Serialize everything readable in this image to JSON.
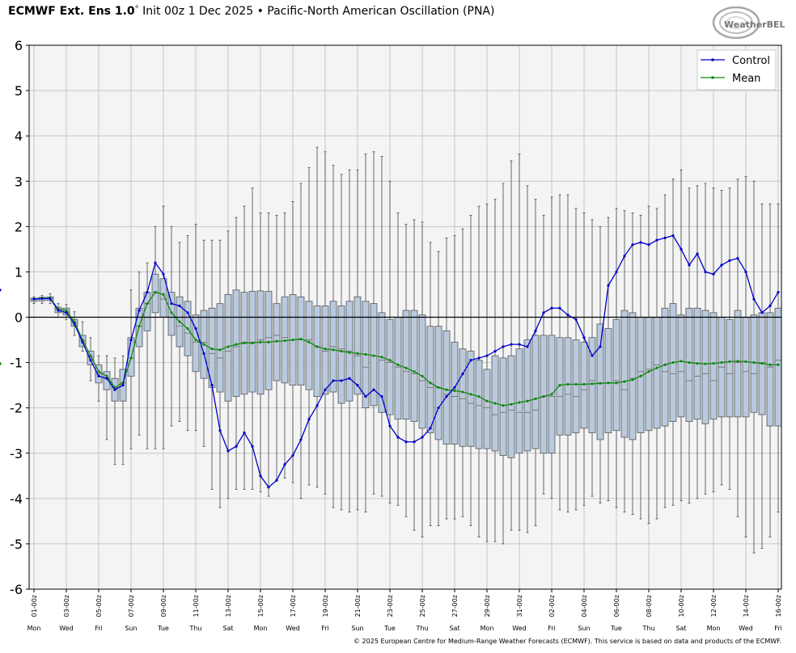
{
  "header": {
    "model": "ECMWF Ext. Ens 1.0",
    "degree": "°",
    "init": "Init 00z 1 Dec 2025",
    "bullet": "•",
    "index": "Pacific-North American Oscillation (PNA)"
  },
  "logo": {
    "text": "WeatherBELL",
    "icon": "weatherbell-logo"
  },
  "footer": {
    "text": "© 2025 European Centre for Medium-Range Weather Forecasts (ECMWF). This service is based on data and products of the ECMWF."
  },
  "colors": {
    "plot_bg": "#f4f4f4",
    "grid": "#c6c6c6",
    "box_fill": "#b9cadf",
    "box_edge": "#555555",
    "control": "#0000cc",
    "mean": "#118811"
  },
  "chart_data": {
    "type": "boxplot",
    "title": "ECMWF Ext. Ens 1.0° Init 00z 1 Dec 2025 • Pacific-North American Oscillation (PNA)",
    "ylim": [
      -6,
      6
    ],
    "yticks": [
      6,
      5,
      4,
      3,
      2,
      1,
      0,
      -1,
      -2,
      -3,
      -4,
      -5,
      -6
    ],
    "grid": true,
    "legend_position": "top-right",
    "x_tick_labels": [
      "01-00z",
      "03-00z",
      "05-00z",
      "07-00z",
      "09-00z",
      "11-00z",
      "13-00z",
      "15-00z",
      "17-00z",
      "19-00z",
      "21-00z",
      "23-00z",
      "25-00z",
      "27-00z",
      "29-00z",
      "31-00z",
      "02-00z",
      "04-00z",
      "06-00z",
      "08-00z",
      "10-00z",
      "12-00z",
      "14-00z",
      "16-00z"
    ],
    "x_day_labels": [
      "Mon",
      "Wed",
      "Fri",
      "Sun",
      "Tue",
      "Thu",
      "Sat",
      "Mon",
      "Wed",
      "Fri",
      "Sun",
      "Tue",
      "Thu",
      "Sat",
      "Mon",
      "Wed",
      "Fri",
      "Sun",
      "Tue",
      "Thu",
      "Sat",
      "Mon",
      "Wed",
      "Fri"
    ],
    "x_units": "days since 01-00z, 12-hour steps",
    "box_x": [
      0,
      0.5,
      1,
      1.5,
      2,
      2.5,
      3,
      3.5,
      4,
      4.5,
      5,
      5.5,
      6,
      6.5,
      7,
      7.5,
      8,
      8.5,
      9,
      9.5,
      10,
      10.5,
      11,
      11.5,
      12,
      12.5,
      13,
      13.5,
      14,
      14.5,
      15,
      15.5,
      16,
      16.5,
      17,
      17.5,
      18,
      18.5,
      19,
      19.5,
      20,
      20.5,
      21,
      21.5,
      22,
      22.5,
      23,
      23.5,
      24,
      24.5,
      25,
      25.5,
      26,
      26.5,
      27,
      27.5,
      28,
      28.5,
      29,
      29.5,
      30,
      30.5,
      31,
      31.5,
      32,
      32.5,
      33,
      33.5,
      34,
      34.5,
      35,
      35.5,
      36,
      36.5,
      37,
      37.5,
      38,
      38.5,
      39,
      39.5,
      40,
      40.5,
      41,
      41.5,
      42,
      42.5,
      43,
      43.5,
      44,
      44.5,
      45,
      45.5,
      46
    ],
    "series": [
      {
        "name": "Control",
        "color": "#0000cc",
        "values": [
          0.4,
          0.41,
          0.41,
          0.15,
          0.1,
          -0.15,
          -0.55,
          -0.95,
          -1.3,
          -1.35,
          -1.6,
          -1.5,
          -0.5,
          0.15,
          0.55,
          1.2,
          0.95,
          0.3,
          0.25,
          0.1,
          -0.25,
          -0.8,
          -1.5,
          -2.5,
          -2.95,
          -2.85,
          -2.55,
          -2.85,
          -3.5,
          -3.75,
          -3.6,
          -3.25,
          -3.05,
          -2.7,
          -2.25,
          -1.95,
          -1.6,
          -1.4,
          -1.4,
          -1.35,
          -1.5,
          -1.75,
          -1.6,
          -1.75,
          -2.4,
          -2.65,
          -2.75,
          -2.75,
          -2.65,
          -2.45,
          -2.0,
          -1.75,
          -1.55,
          -1.25,
          -0.95,
          -0.9,
          -0.85,
          -0.75,
          -0.65,
          -0.6,
          -0.6,
          -0.65,
          -0.3,
          0.1,
          0.2,
          0.2,
          0.05,
          -0.05,
          -0.45,
          -0.85,
          -0.65,
          0.7,
          1.0,
          1.35,
          1.6,
          1.65,
          1.6,
          1.7,
          1.75,
          1.8,
          1.5,
          1.15,
          1.4,
          1.0,
          0.95,
          1.15,
          1.25,
          1.3,
          1.0,
          0.4,
          0.1,
          0.25,
          0.55,
          0.6
        ]
      },
      {
        "name": "Mean",
        "color": "#118811",
        "values": [
          0.4,
          0.42,
          0.42,
          0.18,
          0.15,
          -0.1,
          -0.5,
          -0.85,
          -1.2,
          -1.3,
          -1.55,
          -1.45,
          -0.9,
          -0.2,
          0.3,
          0.55,
          0.5,
          0.1,
          -0.1,
          -0.25,
          -0.5,
          -0.6,
          -0.7,
          -0.72,
          -0.65,
          -0.6,
          -0.57,
          -0.57,
          -0.55,
          -0.55,
          -0.53,
          -0.52,
          -0.5,
          -0.48,
          -0.55,
          -0.65,
          -0.7,
          -0.72,
          -0.75,
          -0.78,
          -0.8,
          -0.82,
          -0.85,
          -0.88,
          -0.95,
          -1.05,
          -1.12,
          -1.2,
          -1.3,
          -1.45,
          -1.55,
          -1.6,
          -1.62,
          -1.65,
          -1.7,
          -1.75,
          -1.85,
          -1.9,
          -1.95,
          -1.92,
          -1.88,
          -1.85,
          -1.8,
          -1.75,
          -1.7,
          -1.5,
          -1.48,
          -1.48,
          -1.48,
          -1.47,
          -1.46,
          -1.45,
          -1.45,
          -1.42,
          -1.38,
          -1.3,
          -1.2,
          -1.12,
          -1.05,
          -1.0,
          -0.97,
          -1.0,
          -1.02,
          -1.03,
          -1.02,
          -1.0,
          -0.98,
          -0.97,
          -0.98,
          -1.0,
          -1.02,
          -1.05,
          -1.05,
          -1.03,
          -1.02
        ]
      }
    ],
    "box_q1": [
      0.35,
      0.36,
      0.37,
      0.1,
      0.05,
      -0.2,
      -0.65,
      -1.05,
      -1.45,
      -1.6,
      -1.85,
      -1.85,
      -1.3,
      -0.65,
      -0.3,
      0.1,
      0.0,
      -0.4,
      -0.65,
      -0.85,
      -1.2,
      -1.35,
      -1.55,
      -1.65,
      -1.85,
      -1.75,
      -1.7,
      -1.65,
      -1.7,
      -1.6,
      -1.4,
      -1.45,
      -1.5,
      -1.5,
      -1.6,
      -1.75,
      -1.7,
      -1.65,
      -1.9,
      -1.85,
      -1.7,
      -2.0,
      -1.95,
      -2.1,
      -2.15,
      -2.25,
      -2.25,
      -2.3,
      -2.45,
      -2.55,
      -2.7,
      -2.8,
      -2.8,
      -2.85,
      -2.85,
      -2.9,
      -2.9,
      -2.95,
      -3.05,
      -3.1,
      -3.0,
      -2.95,
      -2.9,
      -3.0,
      -3.0,
      -2.6,
      -2.6,
      -2.55,
      -2.45,
      -2.55,
      -2.7,
      -2.55,
      -2.5,
      -2.65,
      -2.7,
      -2.55,
      -2.5,
      -2.45,
      -2.4,
      -2.3,
      -2.2,
      -2.3,
      -2.25,
      -2.35,
      -2.25,
      -2.2,
      -2.2,
      -2.2,
      -2.2,
      -2.1,
      -2.15,
      -2.4,
      -2.4,
      -2.35,
      -2.5,
      -2.6
    ],
    "box_q3": [
      0.42,
      0.44,
      0.45,
      0.22,
      0.2,
      -0.05,
      -0.4,
      -0.75,
      -1.05,
      -1.2,
      -1.35,
      -1.15,
      -0.45,
      0.2,
      0.55,
      0.95,
      0.85,
      0.55,
      0.45,
      0.35,
      0.05,
      0.15,
      0.2,
      0.3,
      0.5,
      0.6,
      0.55,
      0.57,
      0.58,
      0.57,
      0.3,
      0.45,
      0.5,
      0.45,
      0.35,
      0.25,
      0.25,
      0.35,
      0.25,
      0.35,
      0.45,
      0.35,
      0.3,
      0.1,
      -0.05,
      0.0,
      0.15,
      0.15,
      0.05,
      -0.2,
      -0.2,
      -0.3,
      -0.55,
      -0.7,
      -0.75,
      -0.95,
      -1.15,
      -0.85,
      -0.9,
      -0.85,
      -0.7,
      -0.5,
      -0.4,
      -0.4,
      -0.4,
      -0.45,
      -0.45,
      -0.5,
      -0.55,
      -0.45,
      -0.15,
      -0.25,
      -0.05,
      0.15,
      0.1,
      0.0,
      0.0,
      0.0,
      0.2,
      0.3,
      0.05,
      0.2,
      0.2,
      0.15,
      0.1,
      0.0,
      -0.05,
      0.15,
      0.0,
      0.05,
      0.1,
      0.1,
      0.2,
      0.05
    ],
    "box_median": [
      0.4,
      0.41,
      0.42,
      0.18,
      0.12,
      -0.12,
      -0.52,
      -0.88,
      -1.25,
      -1.35,
      -1.55,
      -1.45,
      -0.9,
      -0.2,
      0.3,
      0.55,
      0.4,
      0.0,
      -0.2,
      -0.35,
      -0.55,
      -0.55,
      -0.8,
      -0.9,
      -0.75,
      -0.65,
      -0.55,
      -0.55,
      -0.5,
      -0.45,
      -0.4,
      -0.45,
      -0.5,
      -0.5,
      -0.5,
      -0.65,
      -0.75,
      -0.65,
      -0.7,
      -0.75,
      -0.85,
      -1.1,
      -0.85,
      -0.95,
      -1.0,
      -1.1,
      -1.2,
      -1.25,
      -1.4,
      -1.55,
      -1.55,
      -1.7,
      -1.75,
      -1.8,
      -1.9,
      -1.95,
      -2.0,
      -2.15,
      -2.1,
      -2.05,
      -2.1,
      -2.1,
      -2.05,
      -1.75,
      -1.75,
      -1.75,
      -1.7,
      -1.75,
      -1.6,
      -1.4,
      -1.45,
      -1.45,
      -1.4,
      -1.6,
      -1.35,
      -1.2,
      -1.15,
      -1.05,
      -1.2,
      -1.25,
      -1.2,
      -1.4,
      -1.3,
      -1.25,
      -1.4,
      -1.1,
      -1.25,
      -1.0,
      -1.2,
      -1.25,
      -1.0,
      -1.1,
      -0.95,
      -0.9
    ],
    "box_min": [
      0.3,
      0.3,
      0.3,
      0.0,
      -0.05,
      -0.4,
      -0.75,
      -1.4,
      -1.85,
      -2.7,
      -3.25,
      -3.25,
      -2.9,
      -2.6,
      -2.9,
      -2.9,
      -2.9,
      -2.4,
      -2.3,
      -2.5,
      -2.5,
      -2.85,
      -3.8,
      -4.2,
      -4.0,
      -3.8,
      -3.8,
      -3.8,
      -3.85,
      -3.95,
      -3.6,
      -3.55,
      -3.65,
      -4.0,
      -3.7,
      -3.75,
      -3.9,
      -4.2,
      -4.25,
      -4.3,
      -4.25,
      -4.3,
      -3.9,
      -3.95,
      -4.1,
      -4.15,
      -4.4,
      -4.7,
      -4.85,
      -4.6,
      -4.6,
      -4.45,
      -4.45,
      -4.4,
      -4.6,
      -4.85,
      -4.95,
      -4.95,
      -5.0,
      -4.7,
      -4.7,
      -4.75,
      -4.6,
      -3.9,
      -4.0,
      -4.25,
      -4.3,
      -4.25,
      -4.15,
      -3.95,
      -4.1,
      -4.05,
      -4.2,
      -4.3,
      -4.35,
      -4.45,
      -4.55,
      -4.45,
      -4.2,
      -4.15,
      -4.05,
      -4.1,
      -4.0,
      -3.9,
      -3.85,
      -3.7,
      -3.8,
      -4.4,
      -4.85,
      -5.2,
      -5.1,
      -4.85,
      -4.3,
      -3.95
    ],
    "box_max": [
      0.45,
      0.48,
      0.52,
      0.3,
      0.28,
      0.12,
      -0.1,
      -0.45,
      -0.85,
      -0.85,
      -0.9,
      -0.85,
      0.6,
      1.0,
      1.2,
      2.0,
      2.45,
      2.0,
      1.65,
      1.8,
      2.05,
      1.7,
      1.7,
      1.7,
      1.9,
      2.2,
      2.45,
      2.85,
      2.3,
      2.3,
      2.25,
      2.3,
      2.55,
      2.95,
      3.3,
      3.75,
      3.65,
      3.35,
      3.15,
      3.25,
      3.25,
      3.6,
      3.65,
      3.55,
      3.0,
      2.3,
      2.05,
      2.15,
      2.1,
      1.65,
      1.45,
      1.75,
      1.8,
      1.95,
      2.25,
      2.45,
      2.5,
      2.6,
      2.95,
      3.45,
      3.6,
      2.9,
      2.6,
      2.25,
      2.65,
      2.7,
      2.7,
      2.4,
      2.3,
      2.15,
      2.0,
      2.2,
      2.4,
      2.35,
      2.3,
      2.25,
      2.45,
      2.4,
      2.7,
      3.05,
      3.25,
      2.85,
      2.9,
      2.95,
      2.85,
      2.8,
      2.85,
      3.05,
      3.1,
      3.0,
      2.5,
      2.5,
      2.5,
      2.55
    ]
  },
  "legend": {
    "items": [
      {
        "name": "Control",
        "color": "#0000cc"
      },
      {
        "name": "Mean",
        "color": "#118811"
      }
    ]
  }
}
